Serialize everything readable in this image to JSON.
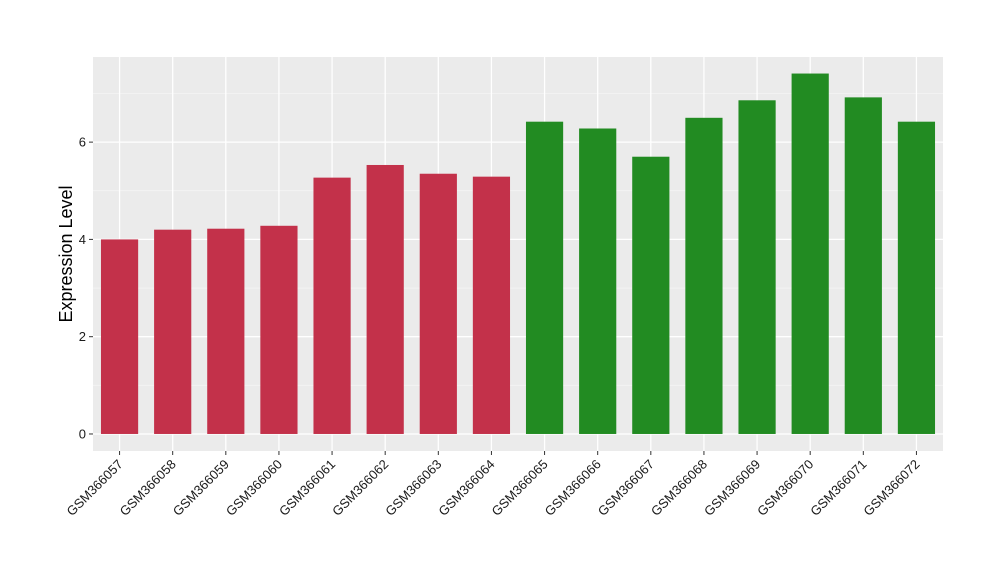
{
  "chart_data": {
    "type": "bar",
    "title": "",
    "xlabel": "",
    "ylabel": "Expression Level",
    "ylim": [
      -0.35,
      7.75
    ],
    "yticks": [
      0,
      2,
      4,
      6
    ],
    "grid": true,
    "panel_background": "#EBEBEB",
    "categories": [
      "GSM366057",
      "GSM366058",
      "GSM366059",
      "GSM366060",
      "GSM366061",
      "GSM366062",
      "GSM366063",
      "GSM366064",
      "GSM366065",
      "GSM366066",
      "GSM366067",
      "GSM366068",
      "GSM366069",
      "GSM366070",
      "GSM366071",
      "GSM366072"
    ],
    "values": [
      4.0,
      4.2,
      4.22,
      4.28,
      5.27,
      5.53,
      5.35,
      5.29,
      6.42,
      6.28,
      5.7,
      6.5,
      6.86,
      7.41,
      6.92,
      6.42
    ],
    "colors": [
      "#C3314A",
      "#C3314A",
      "#C3314A",
      "#C3314A",
      "#C3314A",
      "#C3314A",
      "#C3314A",
      "#C3314A",
      "#228B22",
      "#228B22",
      "#228B22",
      "#228B22",
      "#228B22",
      "#228B22",
      "#228B22",
      "#228B22"
    ]
  }
}
